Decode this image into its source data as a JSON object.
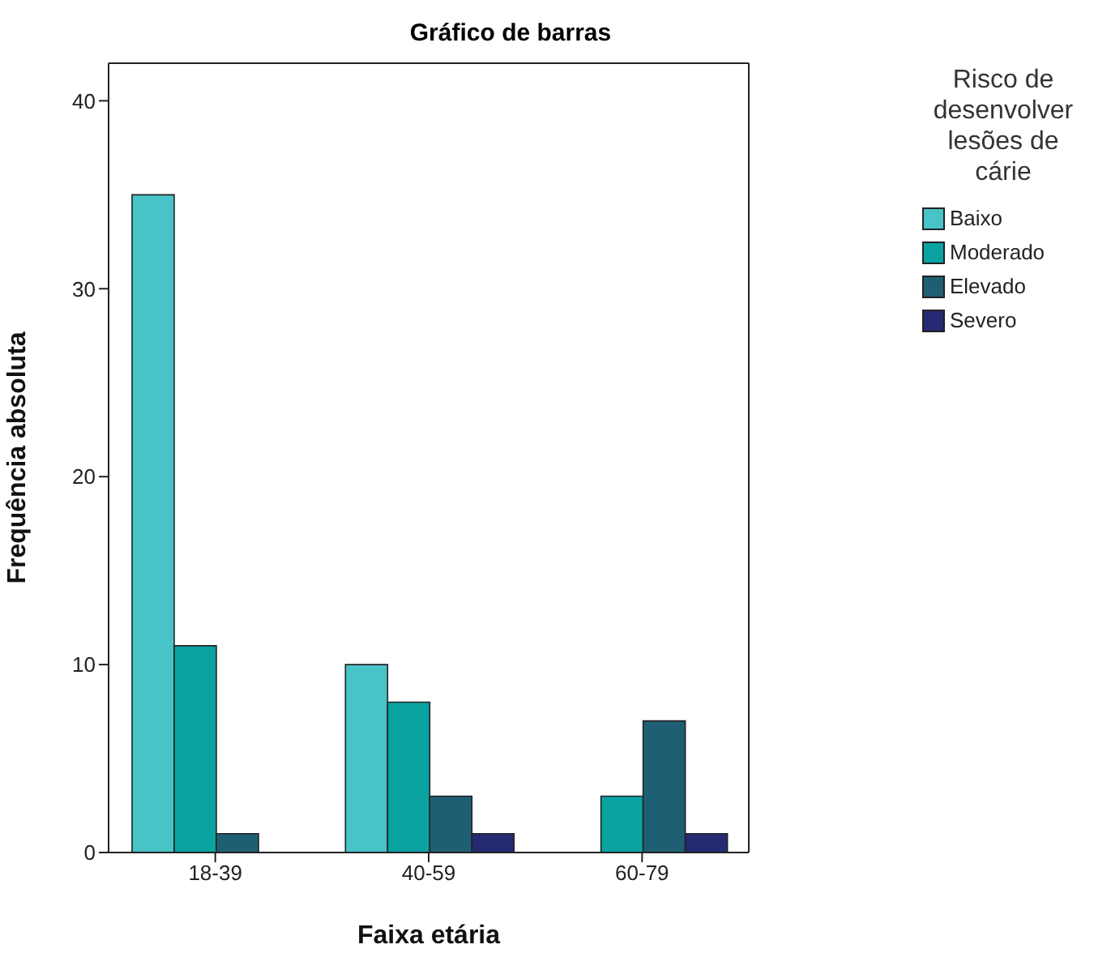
{
  "chart_data": {
    "type": "bar",
    "title": "Gráfico de barras",
    "xlabel": "Faixa etária",
    "ylabel": "Frequência absoluta",
    "legend_title": "Risco de desenvolver lesões de cárie",
    "categories": [
      "18-39",
      "40-59",
      "60-79"
    ],
    "series": [
      {
        "name": "Baixo",
        "color": "#48c4c8",
        "values": [
          35,
          10,
          null
        ]
      },
      {
        "name": "Moderado",
        "color": "#0aa3a2",
        "values": [
          11,
          8,
          3
        ]
      },
      {
        "name": "Elevado",
        "color": "#1f5f74",
        "values": [
          1,
          3,
          7
        ]
      },
      {
        "name": "Severo",
        "color": "#262a73",
        "values": [
          null,
          1,
          1
        ]
      }
    ],
    "ylim": [
      0,
      42
    ],
    "yticks": [
      0,
      10,
      20,
      30,
      40
    ],
    "legend": "right"
  }
}
